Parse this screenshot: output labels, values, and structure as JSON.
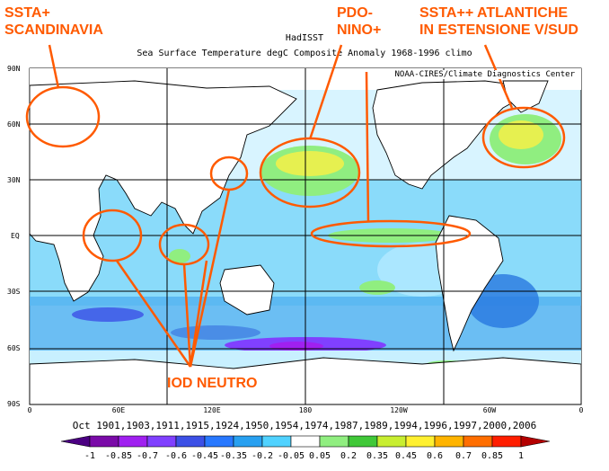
{
  "header": {
    "source": "HadISST",
    "title": "Sea Surface Temperature degC Composite Anomaly 1968-1996 climo",
    "credit": "NOAA-CIRES/Climate Diagnostics Center"
  },
  "annotations": {
    "scandinavia": [
      "SSTA+",
      "SCANDINAVIA"
    ],
    "pdo": [
      "PDO-",
      "NINO+"
    ],
    "atlantic": [
      "SSTA++ ATLANTICHE",
      "IN ESTENSIONE V/SUD"
    ],
    "iod": "IOD NEUTRO"
  },
  "axes": {
    "lat_labels": [
      "90N",
      "60N",
      "30N",
      "EQ",
      "30S",
      "60S",
      "90S"
    ],
    "lon_labels": [
      "0",
      "60E",
      "120E",
      "180",
      "120W",
      "60W",
      "0"
    ]
  },
  "years_caption": "Oct 1901,1903,1911,1915,1924,1950,1954,1974,1987,1989,1994,1996,1997,2000,2006",
  "colorbar": {
    "labels": [
      "-1",
      "-0.85",
      "-0.7",
      "-0.6",
      "-0.45",
      "-0.35",
      "-0.2",
      "-0.05",
      "0.05",
      "0.2",
      "0.35",
      "0.45",
      "0.6",
      "0.7",
      "0.85",
      "1"
    ],
    "colors": [
      "#4b0082",
      "#7a0aa8",
      "#a020f0",
      "#8040ff",
      "#3c50e6",
      "#2878ff",
      "#28a0f0",
      "#50d2ff",
      "#ffffff",
      "#90ee80",
      "#40c838",
      "#c8ee30",
      "#fff030",
      "#ffb400",
      "#ff6e00",
      "#ff1e00",
      "#b40000"
    ]
  },
  "palette": {
    "annotation": "#ff5a00",
    "land": "#ffffff",
    "ocean_neutral": "#ffffff",
    "light_blue": "#c8f0ff",
    "mid_blue": "#50c8f8",
    "deep_blue": "#2878e0",
    "purple": "#8040ff",
    "green": "#90ee80",
    "yellow": "#e6f050"
  }
}
